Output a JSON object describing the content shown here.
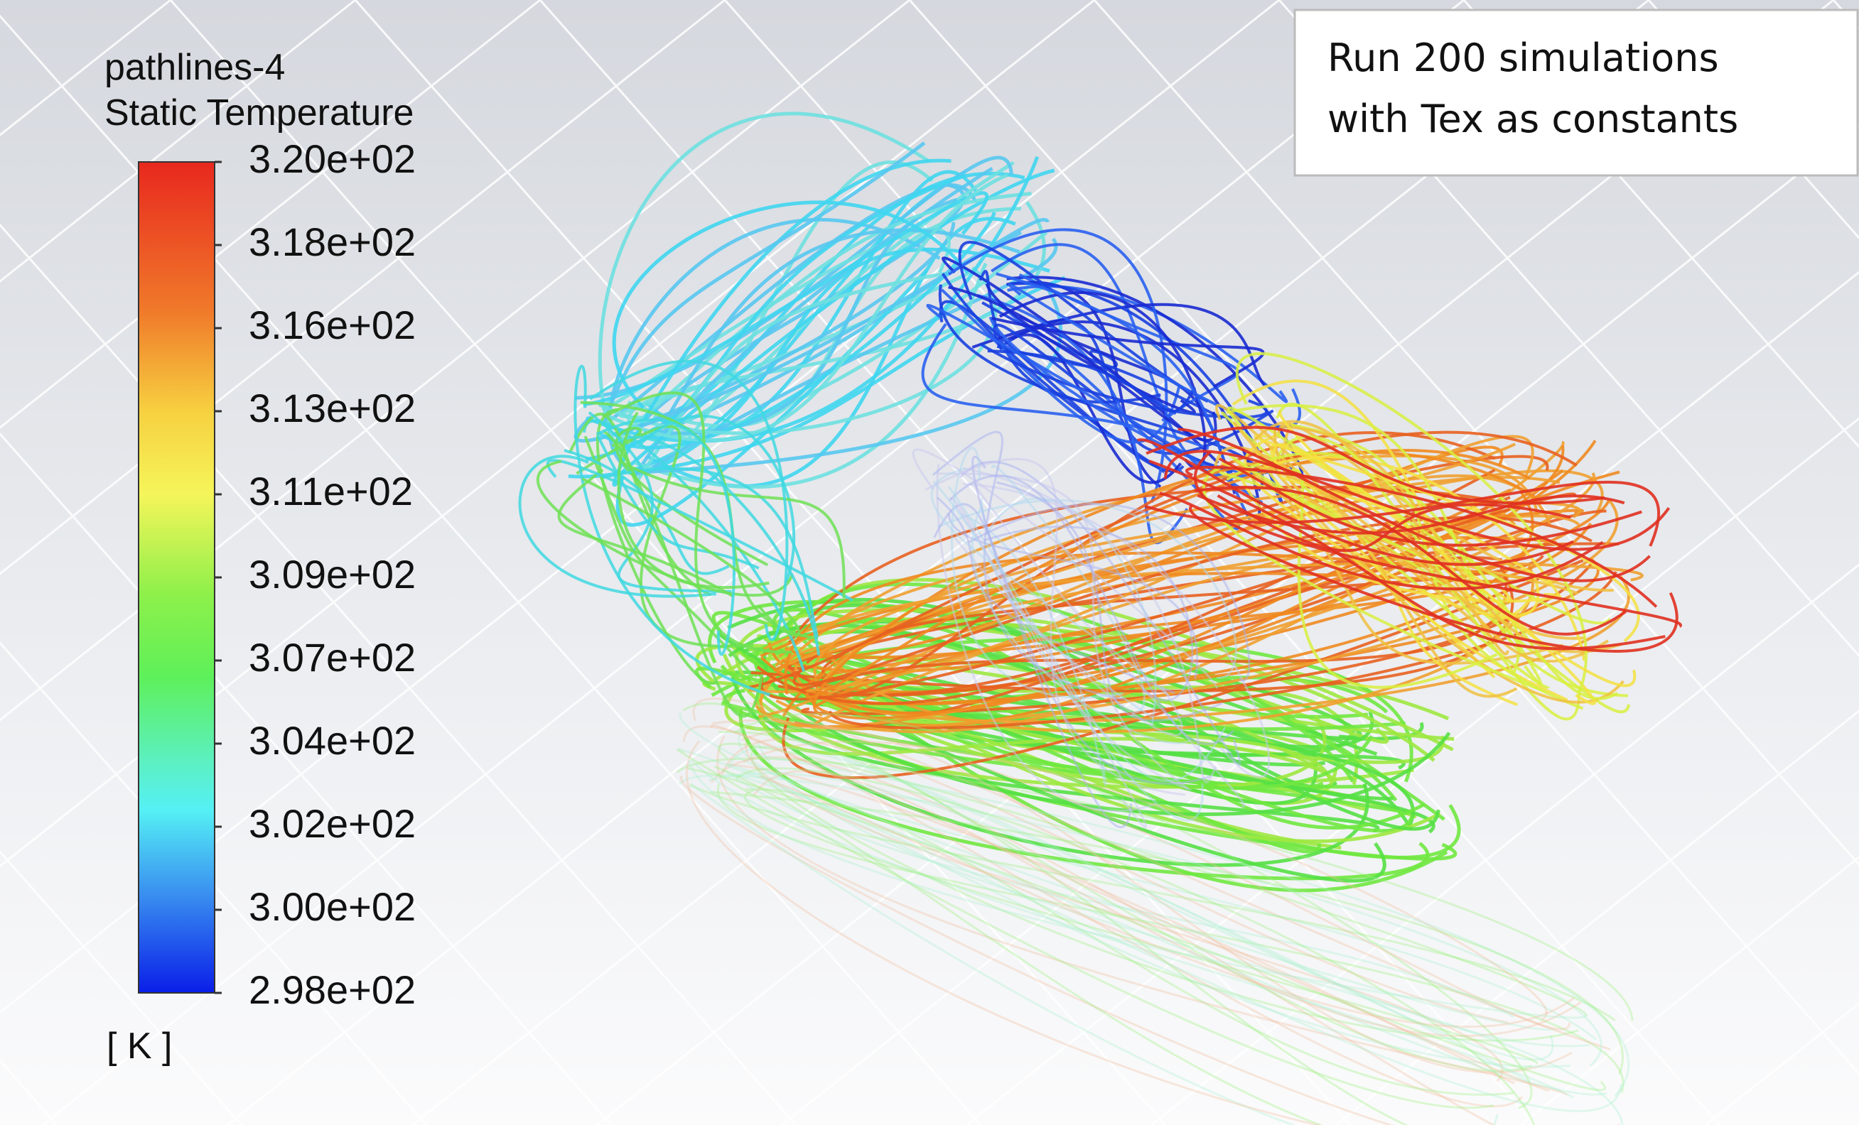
{
  "legend": {
    "title": "pathlines-4",
    "subtitle": "Static Temperature",
    "labels": [
      "3.20e+02",
      "3.18e+02",
      "3.16e+02",
      "3.13e+02",
      "3.11e+02",
      "3.09e+02",
      "3.07e+02",
      "3.04e+02",
      "3.02e+02",
      "3.00e+02",
      "2.98e+02"
    ],
    "unit": "[ K ]"
  },
  "annotation": {
    "lines": [
      "Run 200 simulations",
      "with Tex as constants"
    ]
  }
}
